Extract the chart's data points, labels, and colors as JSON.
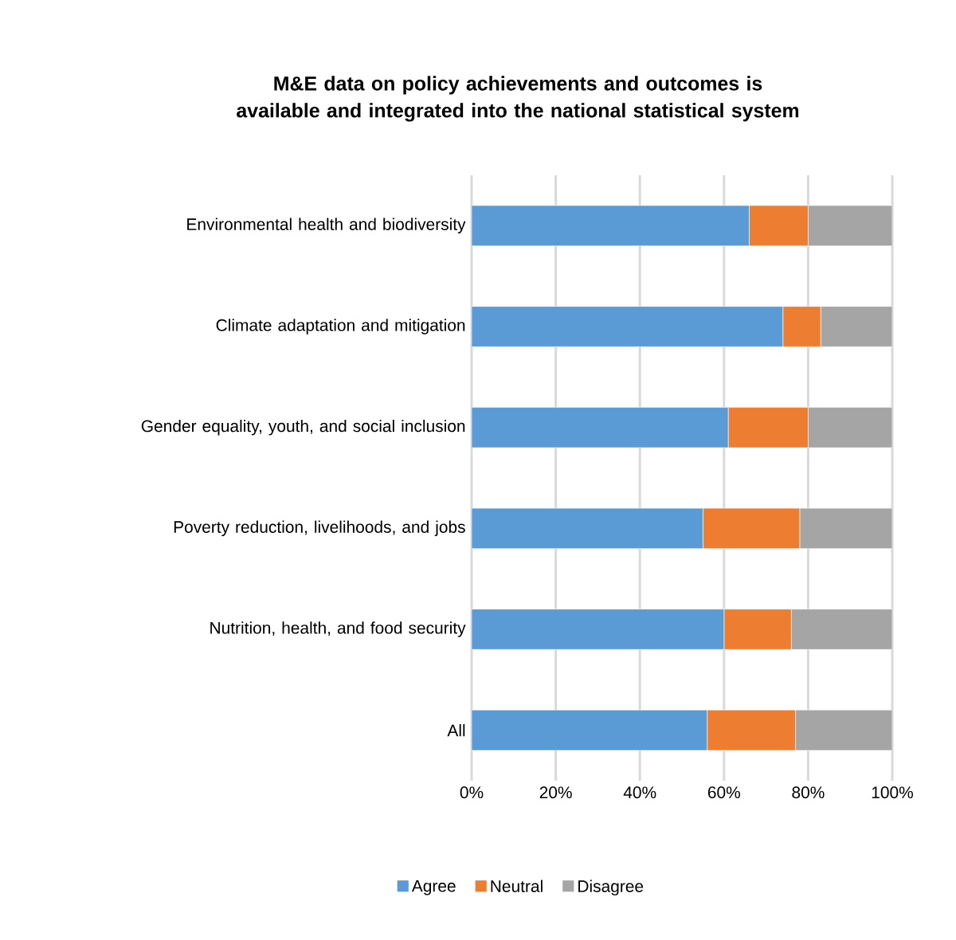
{
  "chart_data": {
    "type": "bar",
    "orientation": "horizontal",
    "stacked": true,
    "title": "M&E data on policy achievements and outcomes is available and integrated into the national statistical system",
    "categories": [
      "Environmental health and biodiversity",
      "Climate adaptation and mitigation",
      "Gender equality, youth, and social inclusion",
      "Poverty reduction, livelihoods, and jobs",
      "Nutrition, health, and food security",
      "All"
    ],
    "series": [
      {
        "name": "Agree",
        "color": "#5b9bd5",
        "values": [
          66,
          74,
          61,
          55,
          60,
          56
        ]
      },
      {
        "name": "Neutral",
        "color": "#ed7d31",
        "values": [
          14,
          9,
          19,
          23,
          16,
          21
        ]
      },
      {
        "name": "Disagree",
        "color": "#a5a5a5",
        "values": [
          20,
          17,
          20,
          22,
          24,
          23
        ]
      }
    ],
    "xlim": [
      0,
      100
    ],
    "xticks": [
      {
        "value": 0,
        "label": "0%"
      },
      {
        "value": 20,
        "label": "20%"
      },
      {
        "value": 40,
        "label": "40%"
      },
      {
        "value": 60,
        "label": "60%"
      },
      {
        "value": 80,
        "label": "80%"
      },
      {
        "value": 100,
        "label": "100%"
      }
    ],
    "grid": "x",
    "legend": "bottom"
  }
}
